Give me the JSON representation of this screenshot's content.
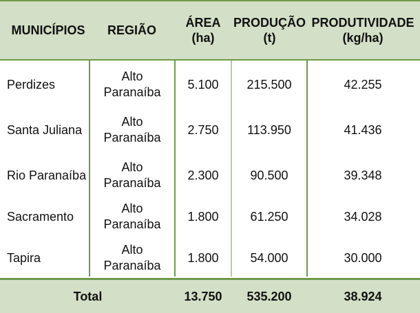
{
  "headers": {
    "municipios": "MUNICÍPIOS",
    "regiao": "REGIÃO",
    "area_line1": "ÁREA",
    "area_line2": "(ha)",
    "producao_line1": "PRODUÇÃO",
    "producao_line2": "(t)",
    "produtividade_line1": "PRODUTIVIDADE",
    "produtividade_line2": "(kg/ha)"
  },
  "rows": [
    {
      "municipio": "Perdizes",
      "regiao_line1": "Alto",
      "regiao_line2": "Paranaíba",
      "area": "5.100",
      "producao": "215.500",
      "produtividade": "42.255"
    },
    {
      "municipio": "Santa Juliana",
      "regiao_line1": "Alto",
      "regiao_line2": "Paranaíba",
      "area": "2.750",
      "producao": "113.950",
      "produtividade": "41.436"
    },
    {
      "municipio": "Rio Paranaíba",
      "regiao_line1": "Alto",
      "regiao_line2": "Paranaíba",
      "area": "2.300",
      "producao": "90.500",
      "produtividade": "39.348"
    },
    {
      "municipio": "Sacramento",
      "regiao_line1": "Alto",
      "regiao_line2": "Paranaíba",
      "area": "1.800",
      "producao": "61.250",
      "produtividade": "34.028"
    },
    {
      "municipio": "Tapira",
      "regiao_line1": "Alto",
      "regiao_line2": "Paranaíba",
      "area": "1.800",
      "producao": "54.000",
      "produtividade": "30.000"
    }
  ],
  "total": {
    "label": "Total",
    "area": "13.750",
    "producao": "535.200",
    "produtividade": "38.924"
  },
  "colors": {
    "header_bg": "#d3dfc6",
    "border": "#6e9a49"
  }
}
